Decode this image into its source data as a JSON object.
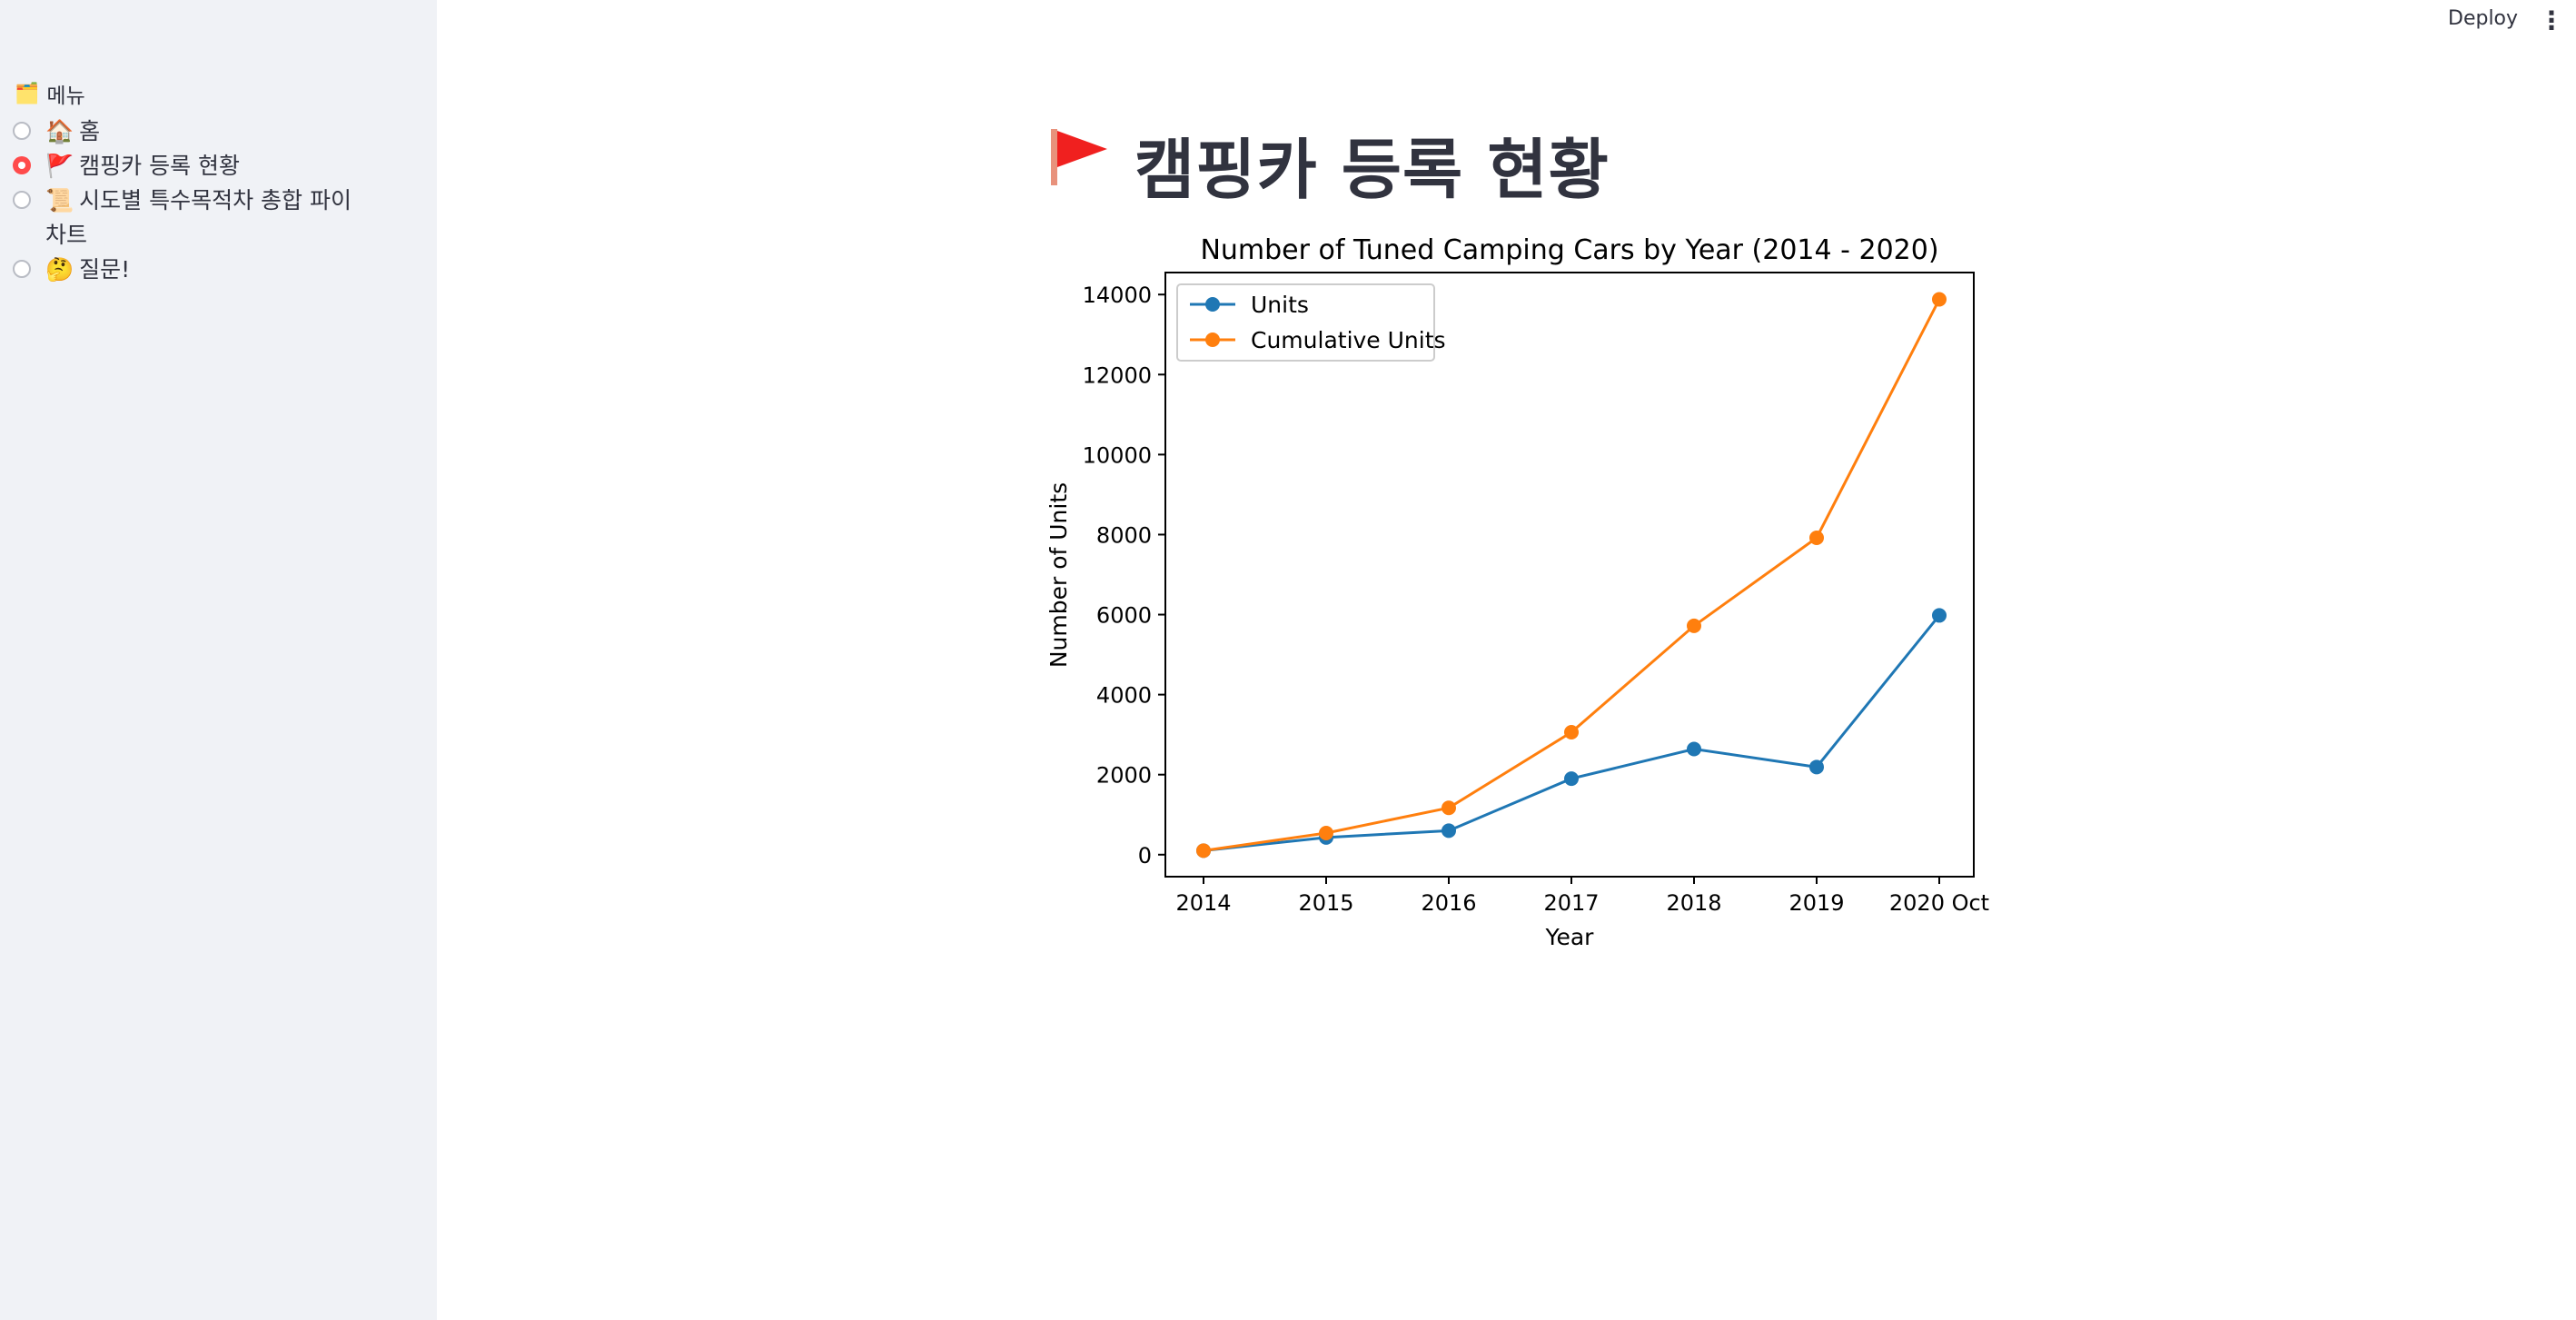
{
  "header": {
    "deploy_label": "Deploy",
    "menu_icon": "vertical-ellipsis-icon"
  },
  "sidebar": {
    "title": "메뉴",
    "title_icon": "folder-emoji",
    "items": [
      {
        "label": "홈",
        "icon": "house-emoji",
        "emoji": "🏠",
        "selected": false
      },
      {
        "label": "캠핑카 등록 현황",
        "icon": "triangular-flag-emoji",
        "emoji": "🚩",
        "selected": true
      },
      {
        "label": "시도별 특수목적차 총합 파이 차트",
        "icon": "scroll-emoji",
        "emoji": "📜",
        "selected": false
      },
      {
        "label": "질문!",
        "icon": "thinking-face-emoji",
        "emoji": "🤔",
        "selected": false
      }
    ]
  },
  "main": {
    "title": "캠핑카 등록 현황",
    "title_icon": "red-flag-icon"
  },
  "colors": {
    "accent": "#ff4b4b",
    "units": "#1f77b4",
    "cumulative": "#ff7f0e",
    "sidebar_bg": "#f0f2f6"
  },
  "chart_data": {
    "type": "line",
    "title": "Number of Tuned Camping Cars by Year (2014 - 2020)",
    "xlabel": "Year",
    "ylabel": "Number of Units",
    "categories": [
      "2014",
      "2015",
      "2016",
      "2017",
      "2018",
      "2019",
      "2020 Oct"
    ],
    "series": [
      {
        "name": "Units",
        "values": [
          100,
          430,
          600,
          1900,
          2640,
          2190,
          5980
        ]
      },
      {
        "name": "Cumulative Units",
        "values": [
          100,
          540,
          1170,
          3060,
          5720,
          7920,
          13880
        ]
      }
    ],
    "ylim": [
      -550,
      14550
    ],
    "yticks": [
      0,
      2000,
      4000,
      6000,
      8000,
      10000,
      12000,
      14000
    ],
    "legend": "upper-left",
    "grid": false
  }
}
